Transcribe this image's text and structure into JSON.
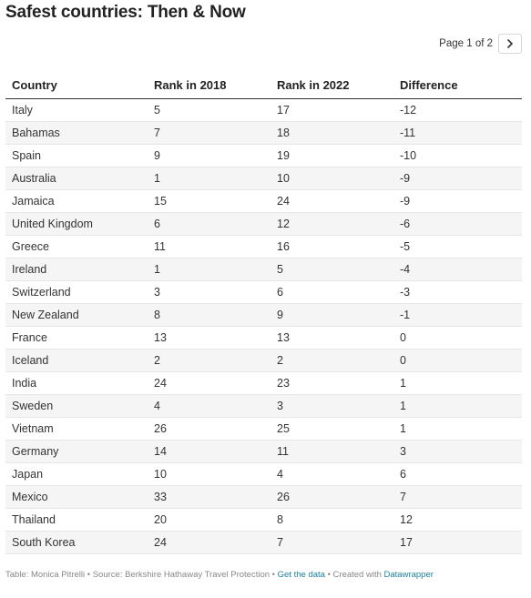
{
  "title": "Safest countries: Then & Now",
  "pager": {
    "label": "Page 1 of 2",
    "next_icon": "chevron-right-icon"
  },
  "chart_data": {
    "type": "table",
    "columns": [
      "Country",
      "Rank in 2018",
      "Rank in 2022",
      "Difference"
    ],
    "rows": [
      [
        "Italy",
        "5",
        "17",
        "-12"
      ],
      [
        "Bahamas",
        "7",
        "18",
        "-11"
      ],
      [
        "Spain",
        "9",
        "19",
        "-10"
      ],
      [
        "Australia",
        "1",
        "10",
        "-9"
      ],
      [
        "Jamaica",
        "15",
        "24",
        "-9"
      ],
      [
        "United Kingdom",
        "6",
        "12",
        "-6"
      ],
      [
        "Greece",
        "11",
        "16",
        "-5"
      ],
      [
        "Ireland",
        "1",
        "5",
        "-4"
      ],
      [
        "Switzerland",
        "3",
        "6",
        "-3"
      ],
      [
        "New Zealand",
        "8",
        "9",
        "-1"
      ],
      [
        "France",
        "13",
        "13",
        "0"
      ],
      [
        "Iceland",
        "2",
        "2",
        "0"
      ],
      [
        "India",
        "24",
        "23",
        "1"
      ],
      [
        "Sweden",
        "4",
        "3",
        "1"
      ],
      [
        "Vietnam",
        "26",
        "25",
        "1"
      ],
      [
        "Germany",
        "14",
        "11",
        "3"
      ],
      [
        "Japan",
        "10",
        "4",
        "6"
      ],
      [
        "Mexico",
        "33",
        "26",
        "7"
      ],
      [
        "Thailand",
        "20",
        "8",
        "12"
      ],
      [
        "South Korea",
        "24",
        "7",
        "17"
      ]
    ]
  },
  "footer": {
    "prefix": "Table: Monica Pitrelli • Source: Berkshire Hathaway Travel Protection • ",
    "data_link": "Get the data",
    "middle": " • Created with ",
    "brand_link": "Datawrapper"
  },
  "colors": {
    "link": "#1d81a2",
    "stripe": "#f5f5f5",
    "header_rule": "#333333",
    "row_rule": "#e6e6e6"
  }
}
